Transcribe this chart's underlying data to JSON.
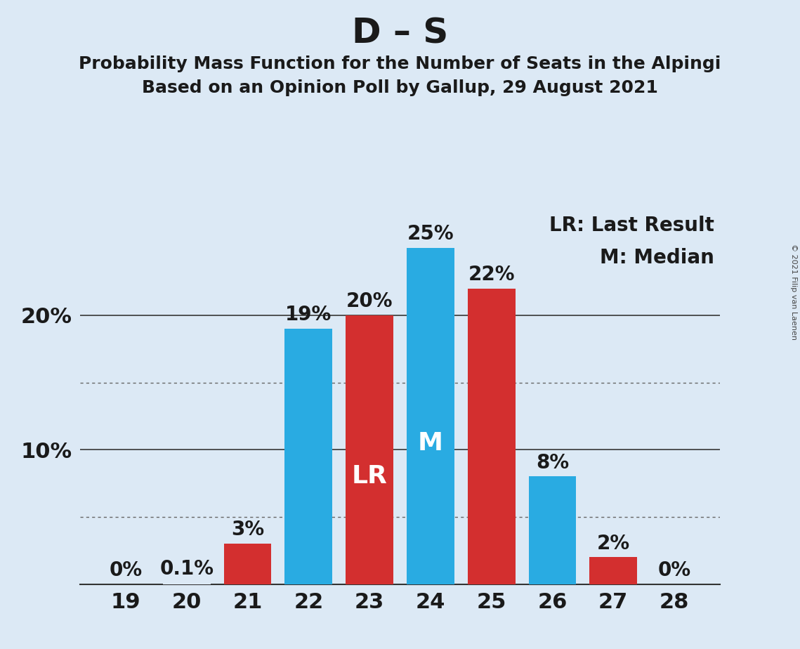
{
  "title": "D – S",
  "subtitle1": "Probability Mass Function for the Number of Seats in the Alpingi",
  "subtitle2": "Based on an Opinion Poll by Gallup, 29 August 2021",
  "copyright": "© 2021 Filip van Laenen",
  "seats": [
    19,
    20,
    21,
    22,
    23,
    24,
    25,
    26,
    27,
    28
  ],
  "pmf_values": [
    0.0,
    0.1,
    3.0,
    19.0,
    20.0,
    25.0,
    22.0,
    8.0,
    2.0,
    0.0
  ],
  "bar_colors": [
    "#dce9f5",
    "#dce9f5",
    "#d32f2f",
    "#29abe2",
    "#d32f2f",
    "#29abe2",
    "#d32f2f",
    "#29abe2",
    "#d32f2f",
    "#dce9f5"
  ],
  "lr_seat": 23,
  "median_seat": 24,
  "lr_label": "LR",
  "median_label": "M",
  "lr_legend": "LR: Last Result",
  "median_legend": "M: Median",
  "background_color": "#dce9f5",
  "bar_color_blue": "#29abe2",
  "bar_color_red": "#d32f2f",
  "yticks": [
    10,
    20
  ],
  "ylabels": [
    "10%",
    "20%"
  ],
  "dotted_lines": [
    5.0,
    15.0
  ],
  "solid_lines": [
    10.0,
    20.0
  ],
  "ylim_max": 28,
  "title_fontsize": 36,
  "subtitle_fontsize": 18,
  "tick_fontsize": 22,
  "annotation_fontsize": 20,
  "legend_fontsize": 20,
  "bar_label_fontsize": 26
}
